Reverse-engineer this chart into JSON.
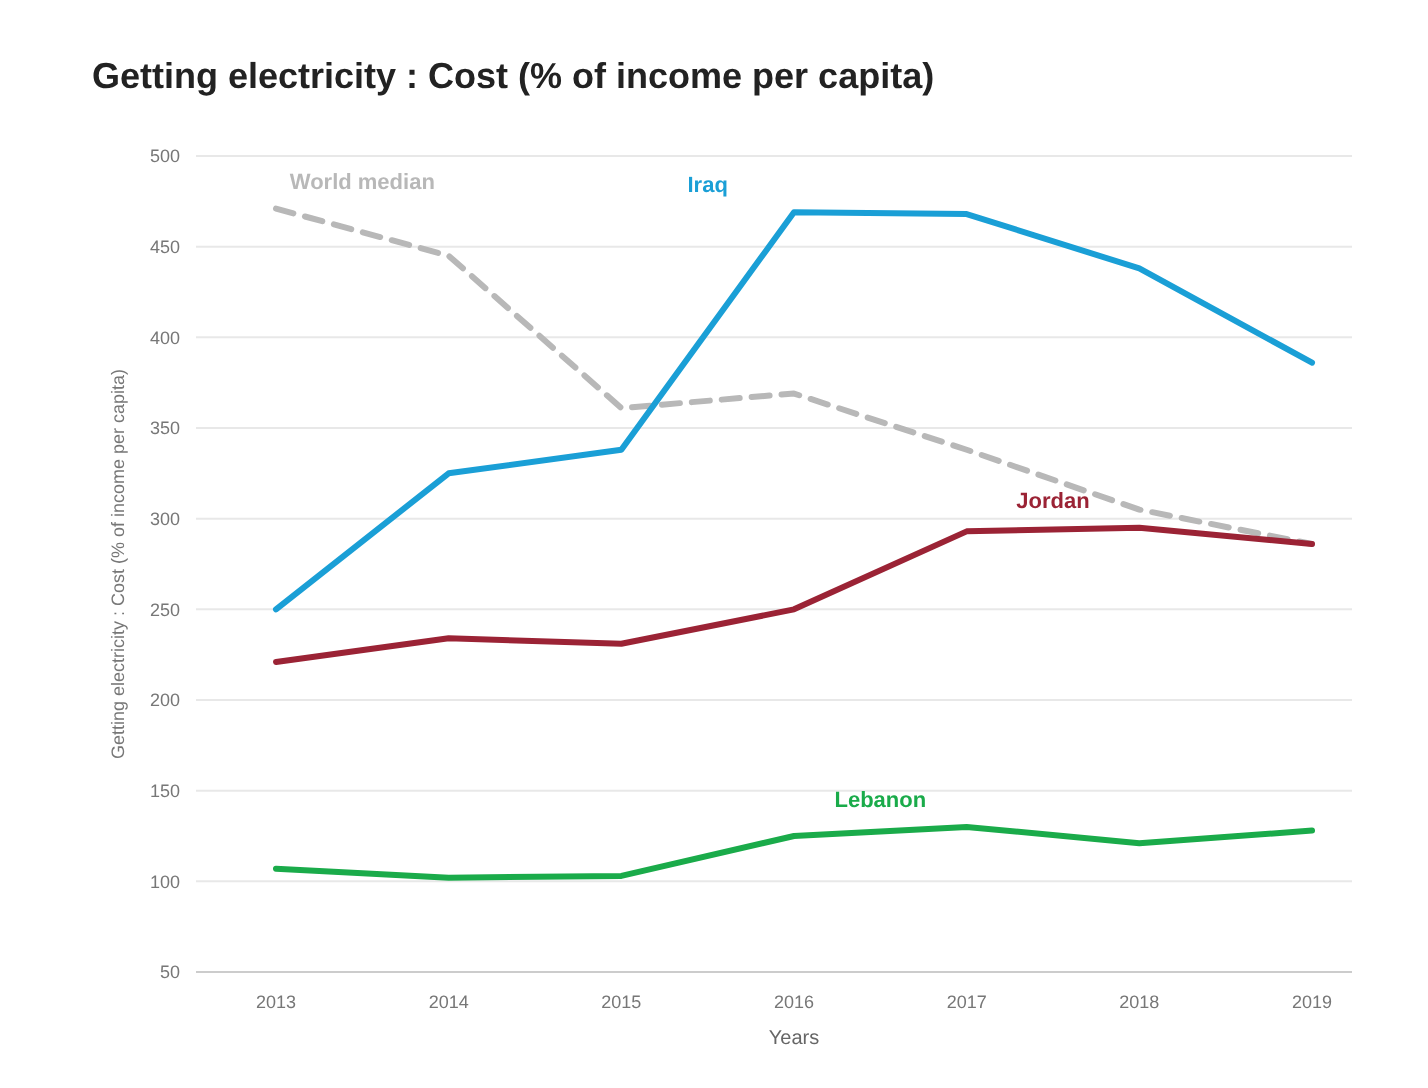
{
  "chart_data": {
    "type": "line",
    "title": "Getting electricity : Cost (% of income per capita)",
    "xlabel": "Years",
    "ylabel": "Getting electricity : Cost (% of income per capita)",
    "categories": [
      "2013",
      "2014",
      "2015",
      "2016",
      "2017",
      "2018",
      "2019"
    ],
    "series": [
      {
        "name": "World median",
        "color": "#b8b8b8",
        "line_style": "dashed",
        "values": [
          471,
          445,
          361,
          369,
          338,
          305,
          286
        ]
      },
      {
        "name": "Iraq",
        "color": "#1a9fd6",
        "values": [
          250,
          325,
          338,
          469,
          468,
          438,
          386
        ]
      },
      {
        "name": "Jordan",
        "color": "#9b2335",
        "values": [
          221,
          234,
          231,
          250,
          293,
          295,
          286
        ]
      },
      {
        "name": "Lebanon",
        "color": "#1aab4a",
        "values": [
          107,
          102,
          103,
          125,
          130,
          121,
          128
        ]
      }
    ],
    "ylim": [
      50,
      500
    ],
    "yticks": [
      50,
      100,
      150,
      200,
      250,
      300,
      350,
      400,
      450,
      500
    ],
    "grid": "y",
    "marker": "none",
    "line_style": "solid"
  }
}
